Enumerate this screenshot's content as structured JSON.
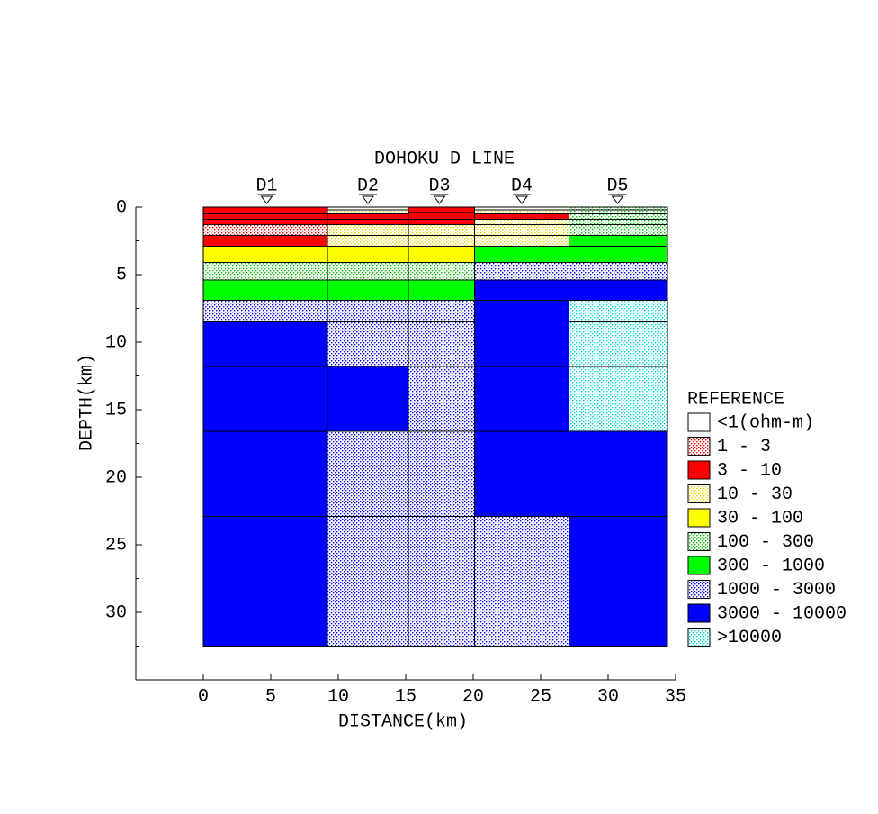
{
  "chart_data": {
    "type": "section",
    "title": "DOHOKU D LINE",
    "x_label": "DISTANCE(km)",
    "y_label": "DEPTH(km)",
    "xlim": [
      -5,
      35
    ],
    "xticks": [
      0,
      5,
      10,
      15,
      20,
      25,
      30,
      35
    ],
    "ylim": [
      0,
      35
    ],
    "yticks": [
      0,
      5,
      10,
      15,
      20,
      25,
      30
    ],
    "yticks_minor": [
      2.5,
      7.5,
      12.5,
      17.5,
      22.5,
      27.5,
      32.5
    ],
    "y_inverted": true,
    "legend": {
      "title": "REFERENCE",
      "items": [
        {
          "label": "<1(ohm-m)",
          "color": "#ffffff",
          "pattern": "solid"
        },
        {
          "label": "1 - 3",
          "color": "#ff0000",
          "pattern": "dots"
        },
        {
          "label": "3 - 10",
          "color": "#ff0000",
          "pattern": "solid"
        },
        {
          "label": "10 - 30",
          "color": "#e8d800",
          "pattern": "dots"
        },
        {
          "label": "30 - 100",
          "color": "#ffff00",
          "pattern": "solid"
        },
        {
          "label": "100 - 300",
          "color": "#00c000",
          "pattern": "dots"
        },
        {
          "label": "300 - 1000",
          "color": "#00ff00",
          "pattern": "solid"
        },
        {
          "label": "1000 - 3000",
          "color": "#0000ff",
          "pattern": "dots"
        },
        {
          "label": "3000 - 10000",
          "color": "#0000ff",
          "pattern": "solid"
        },
        {
          "label": ">10000",
          "color": "#00d8d8",
          "pattern": "dots"
        }
      ]
    },
    "columns": [
      {
        "name": "D1",
        "station": 4.7,
        "x0": 0,
        "x1": 9.2,
        "layers": [
          {
            "top": 0,
            "bottom": 0.5,
            "class": 2
          },
          {
            "top": 0.5,
            "bottom": 0.9,
            "class": 2
          },
          {
            "top": 0.9,
            "bottom": 1.3,
            "class": 2
          },
          {
            "top": 1.3,
            "bottom": 2.1,
            "class": 1
          },
          {
            "top": 2.1,
            "bottom": 2.9,
            "class": 2
          },
          {
            "top": 2.9,
            "bottom": 4.1,
            "class": 4
          },
          {
            "top": 4.1,
            "bottom": 5.4,
            "class": 5
          },
          {
            "top": 5.4,
            "bottom": 6.9,
            "class": 6
          },
          {
            "top": 6.9,
            "bottom": 8.5,
            "class": 7
          },
          {
            "top": 8.5,
            "bottom": 11.8,
            "class": 8
          },
          {
            "top": 11.8,
            "bottom": 16.6,
            "class": 8
          },
          {
            "top": 16.6,
            "bottom": 22.9,
            "class": 8
          },
          {
            "top": 22.9,
            "bottom": 32.5,
            "class": 8
          }
        ]
      },
      {
        "name": "D2",
        "station": 12.2,
        "x0": 9.2,
        "x1": 15.2,
        "layers": [
          {
            "top": 0,
            "bottom": 0.2,
            "class": 0
          },
          {
            "top": 0.2,
            "bottom": 0.5,
            "class": 3
          },
          {
            "top": 0.5,
            "bottom": 0.9,
            "class": 2
          },
          {
            "top": 0.9,
            "bottom": 1.3,
            "class": 2
          },
          {
            "top": 1.3,
            "bottom": 2.1,
            "class": 3
          },
          {
            "top": 2.1,
            "bottom": 2.9,
            "class": 3
          },
          {
            "top": 2.9,
            "bottom": 4.1,
            "class": 4
          },
          {
            "top": 4.1,
            "bottom": 5.4,
            "class": 5
          },
          {
            "top": 5.4,
            "bottom": 6.9,
            "class": 6
          },
          {
            "top": 6.9,
            "bottom": 8.5,
            "class": 7
          },
          {
            "top": 8.5,
            "bottom": 11.8,
            "class": 7
          },
          {
            "top": 11.8,
            "bottom": 16.6,
            "class": 8
          },
          {
            "top": 16.6,
            "bottom": 22.9,
            "class": 7
          },
          {
            "top": 22.9,
            "bottom": 32.5,
            "class": 7
          }
        ]
      },
      {
        "name": "D3",
        "station": 17.5,
        "x0": 15.2,
        "x1": 20.1,
        "layers": [
          {
            "top": 0,
            "bottom": 0.4,
            "class": 2
          },
          {
            "top": 0.4,
            "bottom": 0.9,
            "class": 2
          },
          {
            "top": 0.9,
            "bottom": 1.3,
            "class": 2
          },
          {
            "top": 1.3,
            "bottom": 2.1,
            "class": 3
          },
          {
            "top": 2.1,
            "bottom": 2.9,
            "class": 3
          },
          {
            "top": 2.9,
            "bottom": 4.1,
            "class": 4
          },
          {
            "top": 4.1,
            "bottom": 5.4,
            "class": 5
          },
          {
            "top": 5.4,
            "bottom": 6.9,
            "class": 6
          },
          {
            "top": 6.9,
            "bottom": 8.5,
            "class": 7
          },
          {
            "top": 8.5,
            "bottom": 11.8,
            "class": 7
          },
          {
            "top": 11.8,
            "bottom": 16.6,
            "class": 7
          },
          {
            "top": 16.6,
            "bottom": 22.9,
            "class": 7
          },
          {
            "top": 22.9,
            "bottom": 32.5,
            "class": 7
          }
        ]
      },
      {
        "name": "D4",
        "station": 23.6,
        "x0": 20.1,
        "x1": 27.1,
        "layers": [
          {
            "top": 0,
            "bottom": 0.2,
            "class": 0
          },
          {
            "top": 0.2,
            "bottom": 0.5,
            "class": 3
          },
          {
            "top": 0.5,
            "bottom": 0.9,
            "class": 2
          },
          {
            "top": 0.9,
            "bottom": 1.3,
            "class": 3
          },
          {
            "top": 1.3,
            "bottom": 2.1,
            "class": 3
          },
          {
            "top": 2.1,
            "bottom": 2.9,
            "class": 3
          },
          {
            "top": 2.9,
            "bottom": 4.1,
            "class": 6
          },
          {
            "top": 4.1,
            "bottom": 5.4,
            "class": 7
          },
          {
            "top": 5.4,
            "bottom": 6.9,
            "class": 8
          },
          {
            "top": 6.9,
            "bottom": 11.8,
            "class": 8
          },
          {
            "top": 11.8,
            "bottom": 16.6,
            "class": 8
          },
          {
            "top": 16.6,
            "bottom": 22.9,
            "class": 8
          },
          {
            "top": 22.9,
            "bottom": 32.5,
            "class": 7
          }
        ]
      },
      {
        "name": "D5",
        "station": 30.7,
        "x0": 27.1,
        "x1": 34.4,
        "layers": [
          {
            "top": 0,
            "bottom": 0.2,
            "class": 5
          },
          {
            "top": 0.2,
            "bottom": 0.5,
            "class": 5
          },
          {
            "top": 0.5,
            "bottom": 0.9,
            "class": 5
          },
          {
            "top": 0.9,
            "bottom": 1.3,
            "class": 5
          },
          {
            "top": 1.3,
            "bottom": 2.1,
            "class": 5
          },
          {
            "top": 2.1,
            "bottom": 2.9,
            "class": 6
          },
          {
            "top": 2.9,
            "bottom": 4.1,
            "class": 6
          },
          {
            "top": 4.1,
            "bottom": 5.4,
            "class": 7
          },
          {
            "top": 5.4,
            "bottom": 6.9,
            "class": 8
          },
          {
            "top": 6.9,
            "bottom": 8.5,
            "class": 9
          },
          {
            "top": 8.5,
            "bottom": 11.8,
            "class": 9
          },
          {
            "top": 11.8,
            "bottom": 16.6,
            "class": 9
          },
          {
            "top": 16.6,
            "bottom": 22.9,
            "class": 8
          },
          {
            "top": 22.9,
            "bottom": 32.5,
            "class": 8
          }
        ]
      }
    ]
  }
}
